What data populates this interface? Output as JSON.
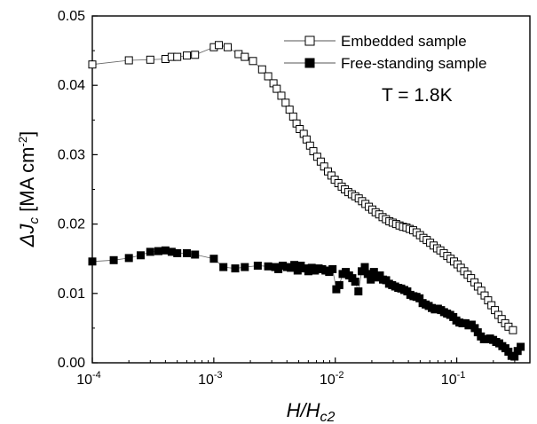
{
  "chart_data": {
    "type": "scatter",
    "x_scale": "log",
    "xlim": [
      0.0001,
      0.4
    ],
    "ylim": [
      0.0,
      0.05
    ],
    "x_ticks": [
      0.0001,
      0.001,
      0.01,
      0.1
    ],
    "y_ticks": [
      0.0,
      0.01,
      0.02,
      0.03,
      0.04,
      0.05
    ],
    "x_tick_labels": [
      "10",
      "10",
      "10",
      "10"
    ],
    "x_tick_exponents": [
      "-4",
      "-3",
      "-2",
      "-1"
    ],
    "y_tick_labels": [
      "0.00",
      "0.01",
      "0.02",
      "0.03",
      "0.04",
      "0.05"
    ],
    "xlabel": "H/H",
    "xlabel_sub": "c2",
    "ylabel": "ΔJ",
    "ylabel_sub": "c",
    "ylabel_unit": " [MA cm",
    "ylabel_exp": "-2",
    "ylabel_close": "]",
    "annotation": "T = 1.8K",
    "legend_position": "top-right",
    "grid": false,
    "series": [
      {
        "name": "Embedded sample",
        "marker": "open-square",
        "color": "#000000",
        "points": [
          [
            0.0001,
            0.043
          ],
          [
            0.0002,
            0.0436
          ],
          [
            0.0003,
            0.0437
          ],
          [
            0.0004,
            0.0438
          ],
          [
            0.00045,
            0.0441
          ],
          [
            0.0005,
            0.0441
          ],
          [
            0.0006,
            0.0443
          ],
          [
            0.0007,
            0.0444
          ],
          [
            0.001,
            0.0455
          ],
          [
            0.0011,
            0.0458
          ],
          [
            0.0013,
            0.0455
          ],
          [
            0.0016,
            0.0445
          ],
          [
            0.0018,
            0.0441
          ],
          [
            0.0021,
            0.0435
          ],
          [
            0.0025,
            0.0423
          ],
          [
            0.0028,
            0.0413
          ],
          [
            0.0031,
            0.0403
          ],
          [
            0.0033,
            0.0395
          ],
          [
            0.0036,
            0.0385
          ],
          [
            0.0039,
            0.0375
          ],
          [
            0.0042,
            0.0365
          ],
          [
            0.0045,
            0.0355
          ],
          [
            0.0048,
            0.0345
          ],
          [
            0.0051,
            0.0337
          ],
          [
            0.0055,
            0.033
          ],
          [
            0.0058,
            0.0322
          ],
          [
            0.0062,
            0.0313
          ],
          [
            0.0066,
            0.0305
          ],
          [
            0.0071,
            0.0297
          ],
          [
            0.0076,
            0.029
          ],
          [
            0.0081,
            0.0283
          ],
          [
            0.0087,
            0.0276
          ],
          [
            0.0093,
            0.027
          ],
          [
            0.0099,
            0.0264
          ],
          [
            0.0106,
            0.0259
          ],
          [
            0.0113,
            0.0254
          ],
          [
            0.012,
            0.025
          ],
          [
            0.0128,
            0.0246
          ],
          [
            0.0137,
            0.0243
          ],
          [
            0.0146,
            0.024
          ],
          [
            0.0156,
            0.0237
          ],
          [
            0.0166,
            0.0233
          ],
          [
            0.0177,
            0.0229
          ],
          [
            0.0189,
            0.0225
          ],
          [
            0.0202,
            0.0221
          ],
          [
            0.0215,
            0.0217
          ],
          [
            0.023,
            0.0214
          ],
          [
            0.0245,
            0.021
          ],
          [
            0.0261,
            0.0207
          ],
          [
            0.0279,
            0.0204
          ],
          [
            0.0297,
            0.0202
          ],
          [
            0.0317,
            0.02
          ],
          [
            0.0338,
            0.0198
          ],
          [
            0.0361,
            0.0196
          ],
          [
            0.0385,
            0.0195
          ],
          [
            0.041,
            0.0193
          ],
          [
            0.0438,
            0.0191
          ],
          [
            0.0467,
            0.0188
          ],
          [
            0.0498,
            0.0184
          ],
          [
            0.0531,
            0.018
          ],
          [
            0.0566,
            0.0177
          ],
          [
            0.0604,
            0.0173
          ],
          [
            0.0645,
            0.0169
          ],
          [
            0.0688,
            0.0165
          ],
          [
            0.0733,
            0.0162
          ],
          [
            0.0782,
            0.0158
          ],
          [
            0.0835,
            0.0154
          ],
          [
            0.089,
            0.015
          ],
          [
            0.095,
            0.0146
          ],
          [
            0.1013,
            0.0142
          ],
          [
            0.108,
            0.0137
          ],
          [
            0.1152,
            0.0132
          ],
          [
            0.1229,
            0.0127
          ],
          [
            0.1311,
            0.0122
          ],
          [
            0.1399,
            0.0116
          ],
          [
            0.1492,
            0.011
          ],
          [
            0.1591,
            0.0104
          ],
          [
            0.1697,
            0.0097
          ],
          [
            0.1811,
            0.009
          ],
          [
            0.1932,
            0.0083
          ],
          [
            0.206,
            0.0076
          ],
          [
            0.2198,
            0.0069
          ],
          [
            0.2344,
            0.0063
          ],
          [
            0.25,
            0.0057
          ],
          [
            0.2667,
            0.0052
          ],
          [
            0.29,
            0.0047
          ]
        ]
      },
      {
        "name": "Free-standing sample",
        "marker": "filled-square",
        "color": "#000000",
        "points": [
          [
            0.0001,
            0.0146
          ],
          [
            0.00015,
            0.0148
          ],
          [
            0.0002,
            0.0151
          ],
          [
            0.00025,
            0.0155
          ],
          [
            0.0003,
            0.016
          ],
          [
            0.00035,
            0.0161
          ],
          [
            0.0004,
            0.0162
          ],
          [
            0.00045,
            0.016
          ],
          [
            0.0005,
            0.0158
          ],
          [
            0.0006,
            0.0158
          ],
          [
            0.0007,
            0.0156
          ],
          [
            0.001,
            0.015
          ],
          [
            0.0012,
            0.0138
          ],
          [
            0.0015,
            0.0136
          ],
          [
            0.0018,
            0.0138
          ],
          [
            0.0023,
            0.014
          ],
          [
            0.0028,
            0.0139
          ],
          [
            0.0032,
            0.0138
          ],
          [
            0.0034,
            0.0135
          ],
          [
            0.0037,
            0.014
          ],
          [
            0.004,
            0.0138
          ],
          [
            0.0043,
            0.0137
          ],
          [
            0.0046,
            0.0141
          ],
          [
            0.0049,
            0.0133
          ],
          [
            0.0052,
            0.014
          ],
          [
            0.0056,
            0.0136
          ],
          [
            0.006,
            0.0132
          ],
          [
            0.0064,
            0.0137
          ],
          [
            0.0068,
            0.0133
          ],
          [
            0.0073,
            0.0136
          ],
          [
            0.0078,
            0.0135
          ],
          [
            0.0083,
            0.0133
          ],
          [
            0.0089,
            0.0131
          ],
          [
            0.0095,
            0.0135
          ],
          [
            0.0102,
            0.0106
          ],
          [
            0.0108,
            0.0112
          ],
          [
            0.0115,
            0.0128
          ],
          [
            0.0122,
            0.0131
          ],
          [
            0.013,
            0.0126
          ],
          [
            0.0138,
            0.0122
          ],
          [
            0.0146,
            0.0117
          ],
          [
            0.0155,
            0.0103
          ],
          [
            0.0165,
            0.0132
          ],
          [
            0.0175,
            0.0138
          ],
          [
            0.0185,
            0.0128
          ],
          [
            0.0196,
            0.012
          ],
          [
            0.0208,
            0.0131
          ],
          [
            0.022,
            0.0123
          ],
          [
            0.0233,
            0.0126
          ],
          [
            0.0247,
            0.012
          ],
          [
            0.0262,
            0.0119
          ],
          [
            0.0277,
            0.0114
          ],
          [
            0.0294,
            0.0112
          ],
          [
            0.0311,
            0.011
          ],
          [
            0.033,
            0.0108
          ],
          [
            0.0349,
            0.0107
          ],
          [
            0.037,
            0.0105
          ],
          [
            0.0392,
            0.0103
          ],
          [
            0.0415,
            0.0098
          ],
          [
            0.044,
            0.0096
          ],
          [
            0.0466,
            0.0095
          ],
          [
            0.0494,
            0.0093
          ],
          [
            0.0523,
            0.0086
          ],
          [
            0.0555,
            0.0084
          ],
          [
            0.0588,
            0.0082
          ],
          [
            0.0623,
            0.0079
          ],
          [
            0.066,
            0.0077
          ],
          [
            0.07,
            0.0078
          ],
          [
            0.0742,
            0.0076
          ],
          [
            0.0786,
            0.0073
          ],
          [
            0.0833,
            0.0071
          ],
          [
            0.0883,
            0.0069
          ],
          [
            0.0936,
            0.0066
          ],
          [
            0.0992,
            0.0061
          ],
          [
            0.1051,
            0.0058
          ],
          [
            0.1114,
            0.0057
          ],
          [
            0.1181,
            0.0057
          ],
          [
            0.1251,
            0.0054
          ],
          [
            0.1326,
            0.0055
          ],
          [
            0.1406,
            0.005
          ],
          [
            0.149,
            0.0044
          ],
          [
            0.1579,
            0.0038
          ],
          [
            0.1673,
            0.0034
          ],
          [
            0.1773,
            0.0034
          ],
          [
            0.1879,
            0.0035
          ],
          [
            0.1992,
            0.0033
          ],
          [
            0.2111,
            0.003
          ],
          [
            0.2237,
            0.0028
          ],
          [
            0.2371,
            0.0024
          ],
          [
            0.2513,
            0.0021
          ],
          [
            0.2663,
            0.0016
          ],
          [
            0.2822,
            0.001
          ],
          [
            0.2991,
            0.0009
          ],
          [
            0.317,
            0.0017
          ],
          [
            0.336,
            0.0023
          ]
        ]
      }
    ]
  }
}
